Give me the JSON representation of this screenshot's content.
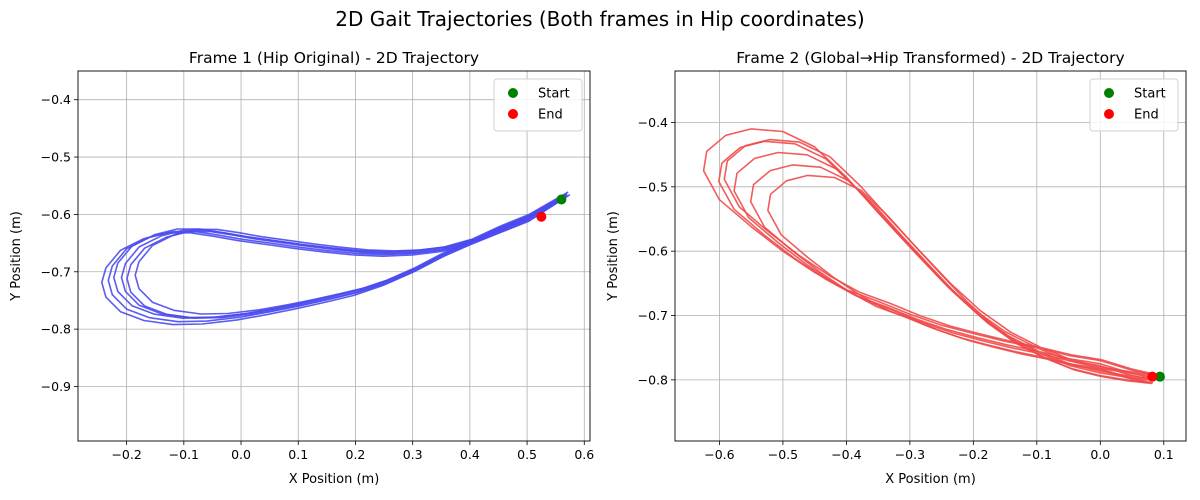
{
  "figure": {
    "suptitle": "2D Gait Trajectories (Both frames in Hip coordinates)"
  },
  "chart_data": [
    {
      "type": "line",
      "title": "Frame 1 (Hip Original) - 2D Trajectory",
      "xlabel": "X Position (m)",
      "ylabel": "Y Position (m)",
      "xlim": [
        -0.285,
        0.61
      ],
      "ylim": [
        -0.995,
        -0.35
      ],
      "xticks": [
        -0.2,
        -0.1,
        0.0,
        0.1,
        0.2,
        0.3,
        0.4,
        0.5,
        0.6
      ],
      "xtick_labels": [
        "−0.2",
        "−0.1",
        "0.0",
        "0.1",
        "0.2",
        "0.3",
        "0.4",
        "0.5",
        "0.6"
      ],
      "yticks": [
        -0.4,
        -0.5,
        -0.6,
        -0.7,
        -0.8,
        -0.9
      ],
      "ytick_labels": [
        "−0.4",
        "−0.5",
        "−0.6",
        "−0.7",
        "−0.8",
        "−0.9"
      ],
      "grid": true,
      "legend_position": "top-right",
      "trajectory_color": "#4a4af0",
      "loop_count": 6,
      "base_loop": [
        [
          0.57,
          -0.565
        ],
        [
          0.5,
          -0.605
        ],
        [
          0.45,
          -0.625
        ],
        [
          0.4,
          -0.648
        ],
        [
          0.35,
          -0.662
        ],
        [
          0.3,
          -0.668
        ],
        [
          0.25,
          -0.67
        ],
        [
          0.2,
          -0.668
        ],
        [
          0.15,
          -0.663
        ],
        [
          0.1,
          -0.657
        ],
        [
          0.05,
          -0.65
        ],
        [
          0.0,
          -0.643
        ],
        [
          -0.04,
          -0.636
        ],
        [
          -0.08,
          -0.63
        ],
        [
          -0.12,
          -0.63
        ],
        [
          -0.16,
          -0.64
        ],
        [
          -0.2,
          -0.66
        ],
        [
          -0.225,
          -0.69
        ],
        [
          -0.232,
          -0.715
        ],
        [
          -0.225,
          -0.74
        ],
        [
          -0.2,
          -0.765
        ],
        [
          -0.16,
          -0.78
        ],
        [
          -0.11,
          -0.787
        ],
        [
          -0.06,
          -0.786
        ],
        [
          0.0,
          -0.779
        ],
        [
          0.05,
          -0.77
        ],
        [
          0.1,
          -0.76
        ],
        [
          0.15,
          -0.749
        ],
        [
          0.2,
          -0.737
        ],
        [
          0.25,
          -0.72
        ],
        [
          0.3,
          -0.698
        ],
        [
          0.35,
          -0.672
        ],
        [
          0.4,
          -0.65
        ],
        [
          0.45,
          -0.63
        ],
        [
          0.5,
          -0.61
        ],
        [
          0.57,
          -0.565
        ]
      ],
      "loop_variations": [
        {
          "dx": 0.0,
          "dy": 0.0,
          "scale": 1.0
        },
        {
          "dx": 0.012,
          "dy": 0.004,
          "scale": 0.97
        },
        {
          "dx": 0.025,
          "dy": 0.007,
          "scale": 0.94
        },
        {
          "dx": -0.004,
          "dy": -0.003,
          "scale": 1.02
        },
        {
          "dx": 0.018,
          "dy": 0.002,
          "scale": 0.96
        },
        {
          "dx": 0.006,
          "dy": 0.005,
          "scale": 0.99
        }
      ],
      "start": {
        "x": 0.56,
        "y": -0.574
      },
      "end": {
        "x": 0.525,
        "y": -0.604
      },
      "legend": {
        "start_label": "Start",
        "end_label": "End",
        "start_color": "#008000",
        "end_color": "#ff0000"
      }
    },
    {
      "type": "line",
      "title": "Frame 2 (Global→Hip Transformed) - 2D Trajectory",
      "xlabel": "X Position (m)",
      "ylabel": "Y Position (m)",
      "xlim": [
        -0.67,
        0.135
      ],
      "ylim": [
        -0.895,
        -0.32
      ],
      "xticks": [
        -0.6,
        -0.5,
        -0.4,
        -0.3,
        -0.2,
        -0.1,
        0.0,
        0.1
      ],
      "xtick_labels": [
        "−0.6",
        "−0.5",
        "−0.4",
        "−0.3",
        "−0.2",
        "−0.1",
        "0.0",
        "0.1"
      ],
      "yticks": [
        -0.4,
        -0.5,
        -0.6,
        -0.7,
        -0.8
      ],
      "ytick_labels": [
        "−0.4",
        "−0.5",
        "−0.6",
        "−0.7",
        "−0.8"
      ],
      "grid": true,
      "legend_position": "top-right",
      "trajectory_color": "#f04a4a",
      "loop_count": 6,
      "base_loop": [
        [
          0.095,
          -0.795
        ],
        [
          0.05,
          -0.785
        ],
        [
          0.0,
          -0.77
        ],
        [
          -0.05,
          -0.762
        ],
        [
          -0.1,
          -0.75
        ],
        [
          -0.15,
          -0.74
        ],
        [
          -0.2,
          -0.728
        ],
        [
          -0.25,
          -0.715
        ],
        [
          -0.3,
          -0.698
        ],
        [
          -0.35,
          -0.678
        ],
        [
          -0.4,
          -0.66
        ],
        [
          -0.45,
          -0.633
        ],
        [
          -0.5,
          -0.6
        ],
        [
          -0.55,
          -0.562
        ],
        [
          -0.6,
          -0.52
        ],
        [
          -0.625,
          -0.475
        ],
        [
          -0.62,
          -0.445
        ],
        [
          -0.59,
          -0.42
        ],
        [
          -0.55,
          -0.41
        ],
        [
          -0.5,
          -0.414
        ],
        [
          -0.45,
          -0.438
        ],
        [
          -0.4,
          -0.485
        ],
        [
          -0.35,
          -0.54
        ],
        [
          -0.3,
          -0.593
        ],
        [
          -0.25,
          -0.645
        ],
        [
          -0.2,
          -0.69
        ],
        [
          -0.15,
          -0.725
        ],
        [
          -0.1,
          -0.75
        ],
        [
          -0.05,
          -0.77
        ],
        [
          0.0,
          -0.782
        ],
        [
          0.05,
          -0.79
        ],
        [
          0.095,
          -0.795
        ]
      ],
      "loop_variations": [
        {
          "dx": 0.0,
          "dy": 0.0,
          "scale": 1.0
        },
        {
          "dx": 0.01,
          "dy": -0.01,
          "scale": 0.96
        },
        {
          "dx": 0.02,
          "dy": -0.018,
          "scale": 0.92
        },
        {
          "dx": 0.032,
          "dy": -0.028,
          "scale": 0.88
        },
        {
          "dx": 0.045,
          "dy": -0.035,
          "scale": 0.84
        },
        {
          "dx": 0.015,
          "dy": -0.005,
          "scale": 0.95
        }
      ],
      "start": {
        "x": 0.094,
        "y": -0.795
      },
      "end": {
        "x": 0.082,
        "y": -0.795
      },
      "legend": {
        "start_label": "Start",
        "end_label": "End",
        "start_color": "#008000",
        "end_color": "#ff0000"
      }
    }
  ]
}
